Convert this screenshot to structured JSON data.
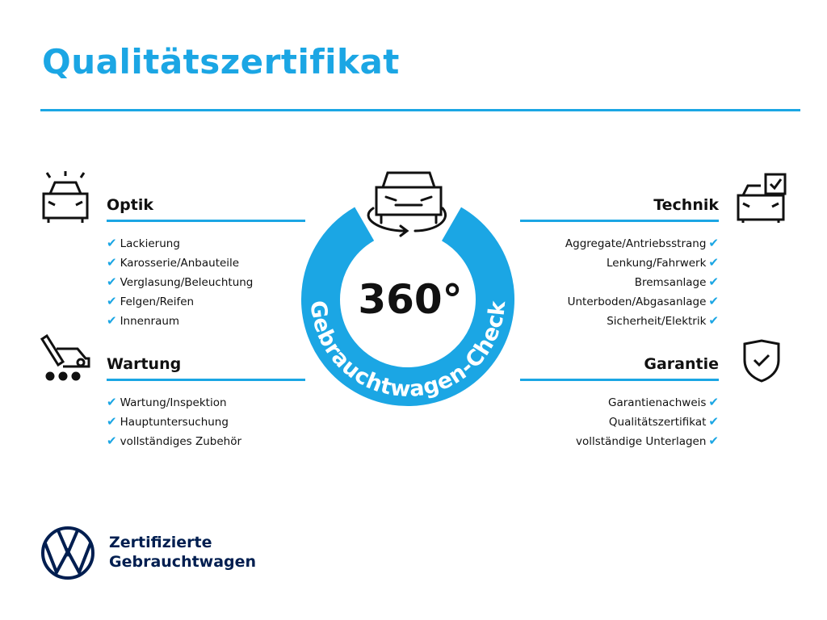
{
  "title": "Qualitätszertifikat",
  "center": {
    "label": "360°",
    "ring_text": "Gebrauchtwagen-Check"
  },
  "sections": {
    "optik": {
      "heading": "Optik",
      "items": [
        "Lackierung",
        "Karosserie/Anbauteile",
        "Verglasung/Beleuchtung",
        "Felgen/Reifen",
        "Innenraum"
      ]
    },
    "wartung": {
      "heading": "Wartung",
      "items": [
        "Wartung/Inspektion",
        "Hauptuntersuchung",
        "vollständiges Zubehör"
      ]
    },
    "technik": {
      "heading": "Technik",
      "items": [
        "Aggregate/Antriebsstrang",
        "Lenkung/Fahrwerk",
        "Bremsanlage",
        "Unterboden/Abgasanlage",
        "Sicherheit/Elektrik"
      ]
    },
    "garantie": {
      "heading": "Garantie",
      "items": [
        "Garantienachweis",
        "Qualitätszertifikat",
        "vollständige Unterlagen"
      ]
    }
  },
  "check_glyph": "✔",
  "brand": {
    "line1": "Zertifizierte",
    "line2": "Gebrauchtwagen"
  },
  "colors": {
    "accent": "#1ba6e4",
    "navy": "#001e50"
  }
}
